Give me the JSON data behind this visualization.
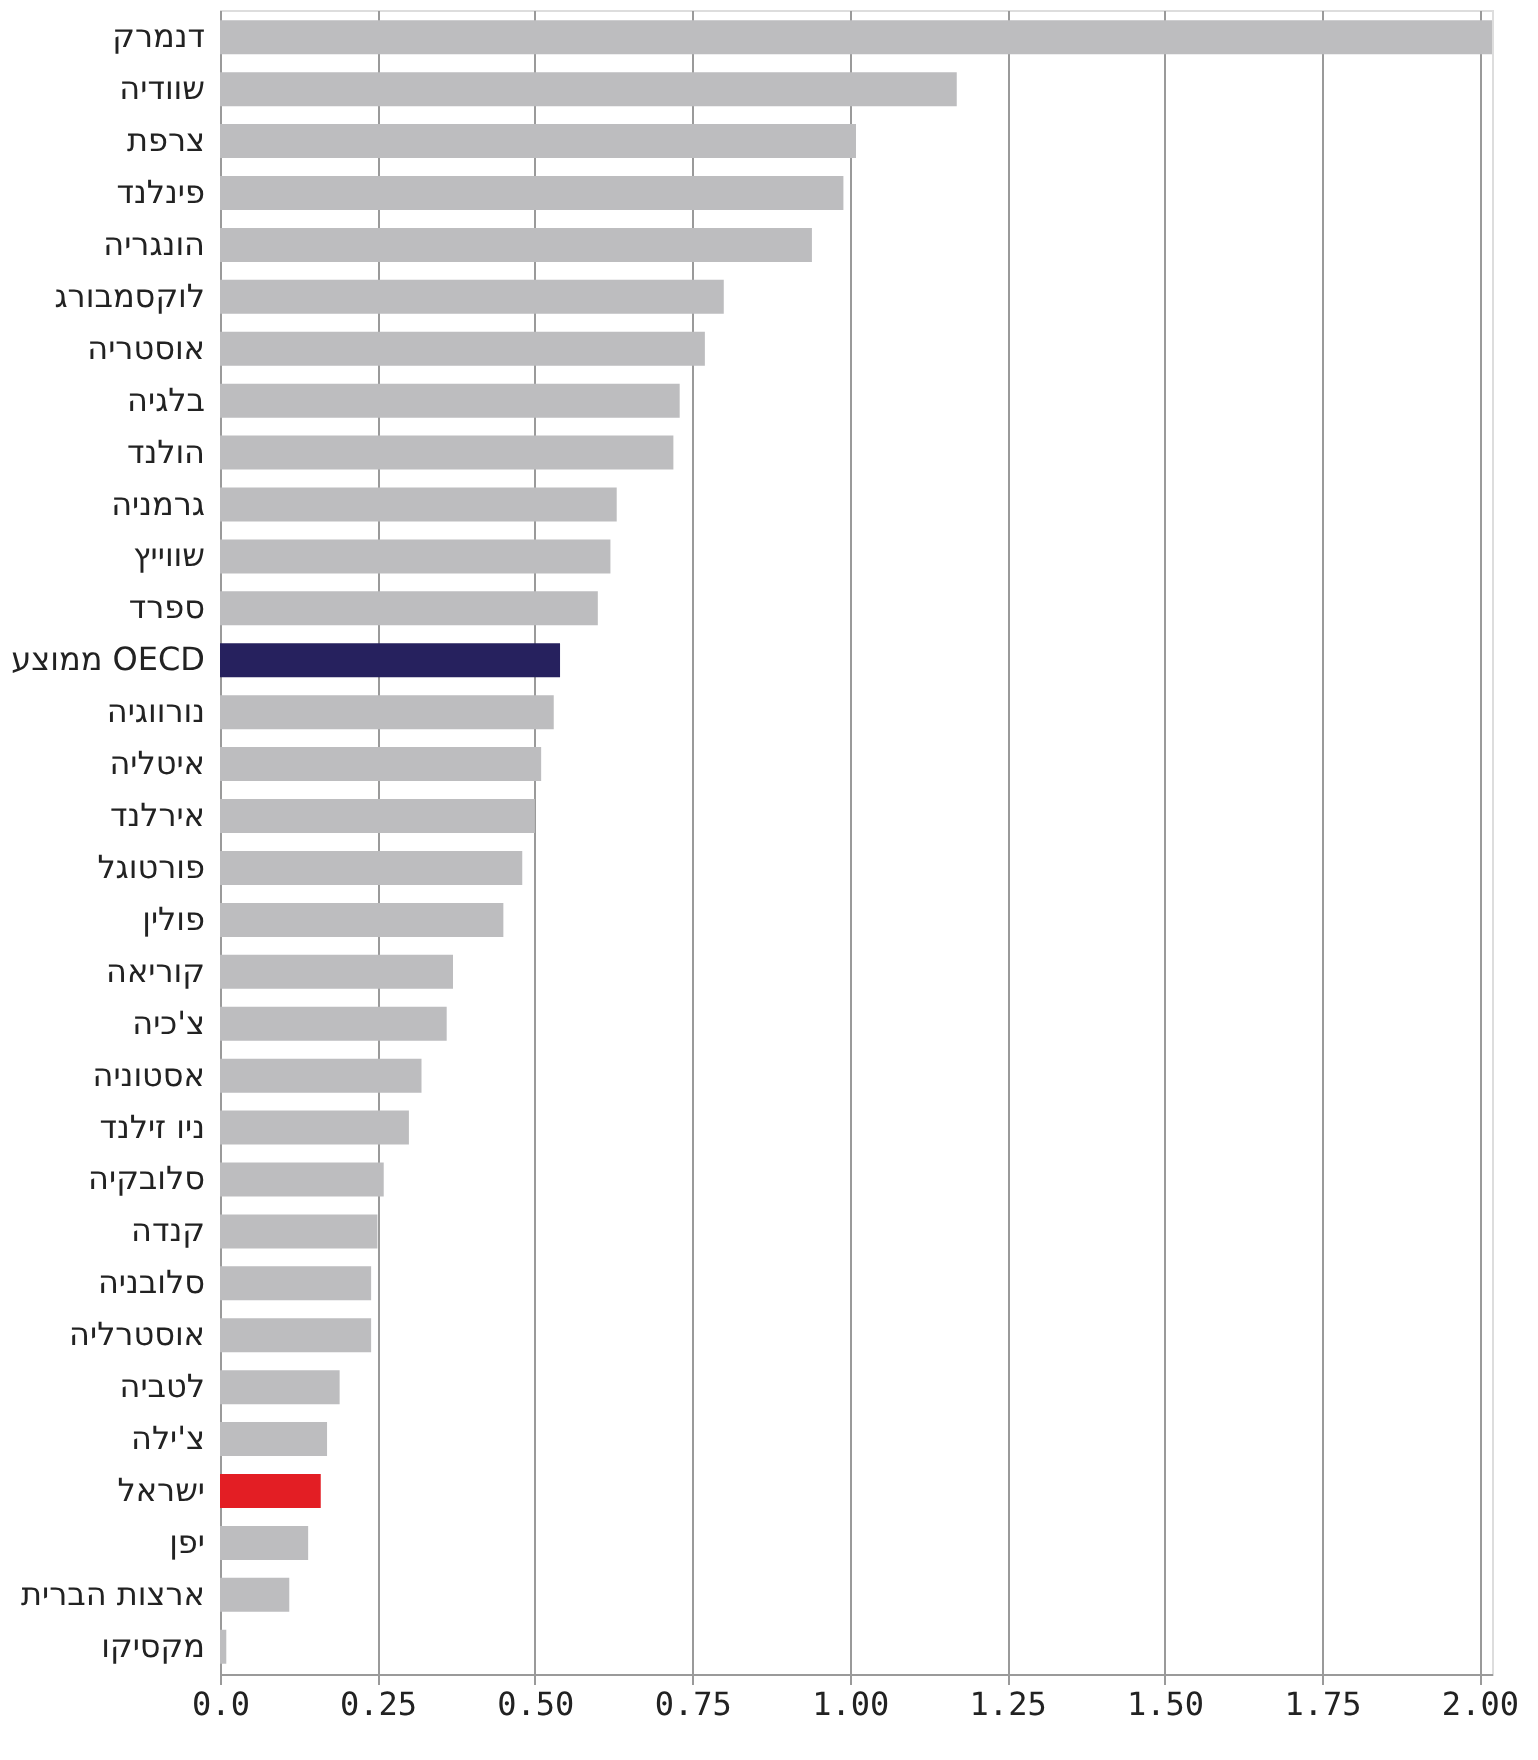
{
  "chart_data": {
    "type": "bar",
    "orientation": "horizontal",
    "categories": [
      "דנמרק",
      "שוודיה",
      "צרפת",
      "פינלנד",
      "הונגריה",
      "לוקסמבורג",
      "אוסטריה",
      "בלגיה",
      "הולנד",
      "גרמניה",
      "שווייץ",
      "ספרד",
      "ממוצע OECD",
      "נורווגיה",
      "איטליה",
      "אירלנד",
      "פורטוגל",
      "פולין",
      "קוריאה",
      "צ'כיה",
      "אסטוניה",
      "ניו זילנד",
      "סלובקיה",
      "קנדה",
      "סלובניה",
      "אוסטרליה",
      "לטביה",
      "צ'ילה",
      "ישראל",
      "יפן",
      "ארצות הברית",
      "מקסיקו"
    ],
    "values": [
      2.02,
      1.17,
      1.01,
      0.99,
      0.94,
      0.8,
      0.77,
      0.73,
      0.72,
      0.63,
      0.62,
      0.6,
      0.54,
      0.53,
      0.51,
      0.5,
      0.48,
      0.45,
      0.37,
      0.36,
      0.32,
      0.3,
      0.26,
      0.25,
      0.24,
      0.24,
      0.19,
      0.17,
      0.16,
      0.14,
      0.11,
      0.01
    ],
    "colors": [
      "#bdbdbf",
      "#bdbdbf",
      "#bdbdbf",
      "#bdbdbf",
      "#bdbdbf",
      "#bdbdbf",
      "#bdbdbf",
      "#bdbdbf",
      "#bdbdbf",
      "#bdbdbf",
      "#bdbdbf",
      "#bdbdbf",
      "#26215e",
      "#bdbdbf",
      "#bdbdbf",
      "#bdbdbf",
      "#bdbdbf",
      "#bdbdbf",
      "#bdbdbf",
      "#bdbdbf",
      "#bdbdbf",
      "#bdbdbf",
      "#bdbdbf",
      "#bdbdbf",
      "#bdbdbf",
      "#bdbdbf",
      "#bdbdbf",
      "#bdbdbf",
      "#e31e24",
      "#bdbdbf",
      "#bdbdbf",
      "#bdbdbf"
    ],
    "xlim": [
      0,
      2.02
    ],
    "xticks": [
      {
        "value": 0,
        "label": "0.0"
      },
      {
        "value": 0.25,
        "label": "0.25"
      },
      {
        "value": 0.5,
        "label": "0.50"
      },
      {
        "value": 0.75,
        "label": "0.75"
      },
      {
        "value": 1,
        "label": "1.00"
      },
      {
        "value": 1.25,
        "label": "1.25"
      },
      {
        "value": 1.5,
        "label": "1.50"
      },
      {
        "value": 1.75,
        "label": "1.75"
      },
      {
        "value": 2,
        "label": "2.00"
      }
    ],
    "grid": "x"
  }
}
